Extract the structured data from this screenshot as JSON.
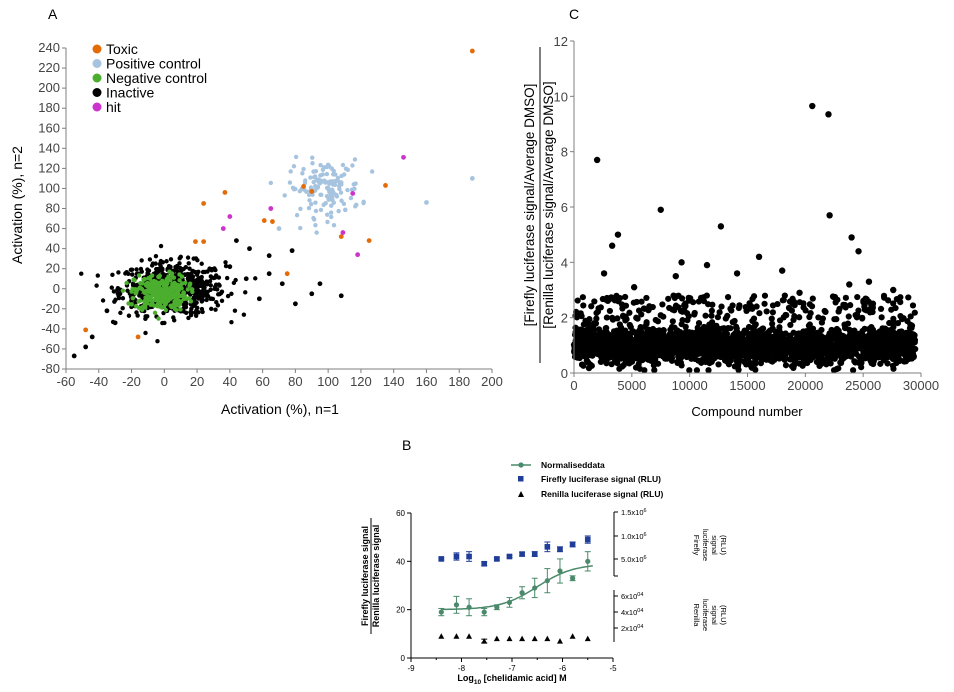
{
  "chart_data": [
    {
      "panel": "A",
      "type": "scatter",
      "xlabel": "Activation (%), n=1",
      "ylabel": "Activation (%), n=2",
      "xlim": [
        -60,
        200
      ],
      "ylim": [
        -80,
        240
      ],
      "xticks": [
        -60,
        -40,
        -20,
        0,
        20,
        40,
        60,
        80,
        100,
        120,
        140,
        160,
        180,
        200
      ],
      "yticks": [
        -80,
        -60,
        -40,
        -20,
        0,
        20,
        40,
        60,
        80,
        100,
        120,
        140,
        160,
        180,
        200,
        220,
        240
      ],
      "legend": [
        {
          "label": "Toxic",
          "color": "#e36c09"
        },
        {
          "label": "Positive control",
          "color": "#a6c3df"
        },
        {
          "label": "Negative control",
          "color": "#4cae2e"
        },
        {
          "label": "Inactive",
          "color": "#000000"
        },
        {
          "label": "hit",
          "color": "#cc33cc"
        }
      ],
      "legend_position": "top-left",
      "clusters": [
        {
          "name": "Inactive",
          "color": "#000000",
          "count": 620,
          "center": [
            5,
            0
          ],
          "spread": [
            16,
            13
          ]
        },
        {
          "name": "Negative control",
          "color": "#4cae2e",
          "count": 300,
          "center": [
            -2,
            -4
          ],
          "spread": [
            8,
            9
          ]
        },
        {
          "name": "Positive control",
          "color": "#a6c3df",
          "count": 140,
          "center": [
            98,
            100
          ],
          "spread": [
            11,
            14
          ]
        }
      ],
      "series": [
        {
          "name": "Toxic",
          "color": "#e36c09",
          "points": [
            [
              188,
              237
            ],
            [
              -48,
              -41
            ],
            [
              -16,
              -48
            ],
            [
              37,
              96
            ],
            [
              24,
              85
            ],
            [
              61,
              68
            ],
            [
              66,
              67
            ],
            [
              19,
              47
            ],
            [
              24,
              47
            ],
            [
              75,
              15
            ],
            [
              85,
              102
            ],
            [
              108,
              52
            ],
            [
              125,
              48
            ],
            [
              135,
              103
            ],
            [
              90,
              97
            ]
          ]
        },
        {
          "name": "hit",
          "color": "#cc33cc",
          "points": [
            [
              146,
              131
            ],
            [
              115,
              95
            ],
            [
              65,
              80
            ],
            [
              40,
              72
            ],
            [
              36,
              60
            ],
            [
              109,
              56
            ],
            [
              118,
              34
            ]
          ]
        },
        {
          "name": "Inactive extra",
          "color": "#000000",
          "points": [
            [
              -55,
              -67
            ],
            [
              -48,
              -58
            ],
            [
              -44,
              -48
            ],
            [
              -30,
              -34
            ],
            [
              -35,
              -22
            ],
            [
              40,
              22
            ],
            [
              50,
              10
            ],
            [
              58,
              -10
            ],
            [
              64,
              15
            ],
            [
              72,
              5
            ],
            [
              80,
              -15
            ],
            [
              90,
              -5
            ],
            [
              95,
              5
            ],
            [
              108,
              -7
            ],
            [
              78,
              38
            ],
            [
              52,
              40
            ],
            [
              64,
              33
            ],
            [
              44,
              48
            ]
          ]
        },
        {
          "name": "Positive control extra",
          "color": "#a6c3df",
          "points": [
            [
              188,
              110
            ],
            [
              160,
              86
            ],
            [
              70,
              60
            ]
          ]
        }
      ]
    },
    {
      "panel": "C",
      "type": "scatter",
      "xlabel": "Compound number",
      "ylabel_line1": "[Firefly luciferase signal/Average DMSO]",
      "ylabel_line2": "[Renilla luciferase signal/Average DMSO]",
      "xlim": [
        0,
        30000
      ],
      "ylim": [
        0,
        12
      ],
      "xticks": [
        0,
        5000,
        10000,
        15000,
        20000,
        25000,
        30000
      ],
      "yticks": [
        0,
        2,
        4,
        6,
        8,
        10,
        12
      ],
      "n_compounds": 29500,
      "band": {
        "center": 1.0,
        "low": 0.1,
        "high": 2.0
      },
      "outliers": [
        [
          20600,
          9.65
        ],
        [
          22000,
          9.35
        ],
        [
          2000,
          7.7
        ],
        [
          7500,
          5.9
        ],
        [
          22100,
          5.7
        ],
        [
          3800,
          5.0
        ],
        [
          12700,
          5.3
        ],
        [
          24000,
          4.9
        ],
        [
          3300,
          4.6
        ],
        [
          24600,
          4.4
        ],
        [
          16000,
          4.2
        ],
        [
          9300,
          4.0
        ],
        [
          11500,
          3.9
        ],
        [
          2600,
          3.6
        ],
        [
          8800,
          3.5
        ],
        [
          23800,
          3.2
        ],
        [
          27600,
          3.0
        ],
        [
          25500,
          3.3
        ],
        [
          5200,
          3.1
        ],
        [
          14100,
          3.6
        ],
        [
          18000,
          3.7
        ],
        [
          19500,
          2.9
        ]
      ]
    },
    {
      "panel": "B",
      "type": "line",
      "xlabel_prefix": "Log",
      "xlabel_sub": "10",
      "xlabel_suffix": " [chelidamic acid] M",
      "ylabel_top": "Firefly luciferase signal",
      "ylabel_bottom": "Renilla luciferase signal",
      "xlim": [
        -9,
        -5
      ],
      "ylim": [
        0,
        60
      ],
      "xticks": [
        -9,
        -8,
        -7,
        -6,
        -5
      ],
      "yticks": [
        0,
        20,
        40,
        60
      ],
      "legend": [
        {
          "label": "Normaliseddata",
          "color": "#4a8a6a",
          "marker": "circle-line"
        },
        {
          "label": "Firefly luciferase signal (RLU)",
          "color": "#1f3d99",
          "marker": "square"
        },
        {
          "label": "Renilla luciferase signal (RLU)",
          "color": "#000000",
          "marker": "triangle"
        }
      ],
      "normalised": {
        "x": [
          -8.4,
          -8.1,
          -7.85,
          -7.55,
          -7.3,
          -7.05,
          -6.8,
          -6.55,
          -6.3,
          -6.05,
          -5.8,
          -5.5
        ],
        "y": [
          19,
          22,
          21,
          19,
          21,
          23,
          27,
          29,
          32,
          36,
          33,
          40
        ],
        "err": [
          1.5,
          3.5,
          3.5,
          1.5,
          1.0,
          2.0,
          2.5,
          4.0,
          5.0,
          5.0,
          1.0,
          4.0
        ],
        "fit": {
          "bottom": 20,
          "top": 39,
          "logEC50": -6.5,
          "hill": 1.2
        }
      },
      "firefly": {
        "x": [
          -8.4,
          -8.1,
          -7.85,
          -7.55,
          -7.3,
          -7.05,
          -6.8,
          -6.55,
          -6.3,
          -6.05,
          -5.8,
          -5.5
        ],
        "y": [
          41,
          42,
          42,
          39,
          41,
          42,
          43,
          43,
          46,
          45,
          47,
          49
        ],
        "err": [
          0.5,
          1.5,
          2.0,
          0.8,
          0.5,
          0.5,
          0.8,
          1.0,
          2.0,
          1.0,
          1.0,
          1.5
        ]
      },
      "renilla": {
        "x": [
          -8.4,
          -8.1,
          -7.85,
          -7.55,
          -7.3,
          -7.05,
          -6.8,
          -6.55,
          -6.3,
          -6.05,
          -5.8,
          -5.5
        ],
        "y": [
          9,
          9,
          9,
          7,
          8,
          8,
          8,
          8,
          8,
          7,
          9,
          8
        ],
        "err": [
          0,
          0,
          0,
          0.8,
          0,
          0,
          0,
          0,
          0,
          0,
          0,
          0
        ]
      },
      "right_axis_firefly": {
        "label": [
          "Firefly",
          "luciferase",
          "signal",
          "(RLU)"
        ],
        "ticks": [
          "1.5x10",
          "1.0x10",
          "5.0x10"
        ],
        "exp": "6"
      },
      "right_axis_renilla": {
        "label": [
          "Renilla",
          "luciferase",
          "signal",
          "(RLU)"
        ],
        "ticks": [
          "6x10",
          "4x10",
          "2x10"
        ],
        "exp": "04"
      }
    }
  ]
}
